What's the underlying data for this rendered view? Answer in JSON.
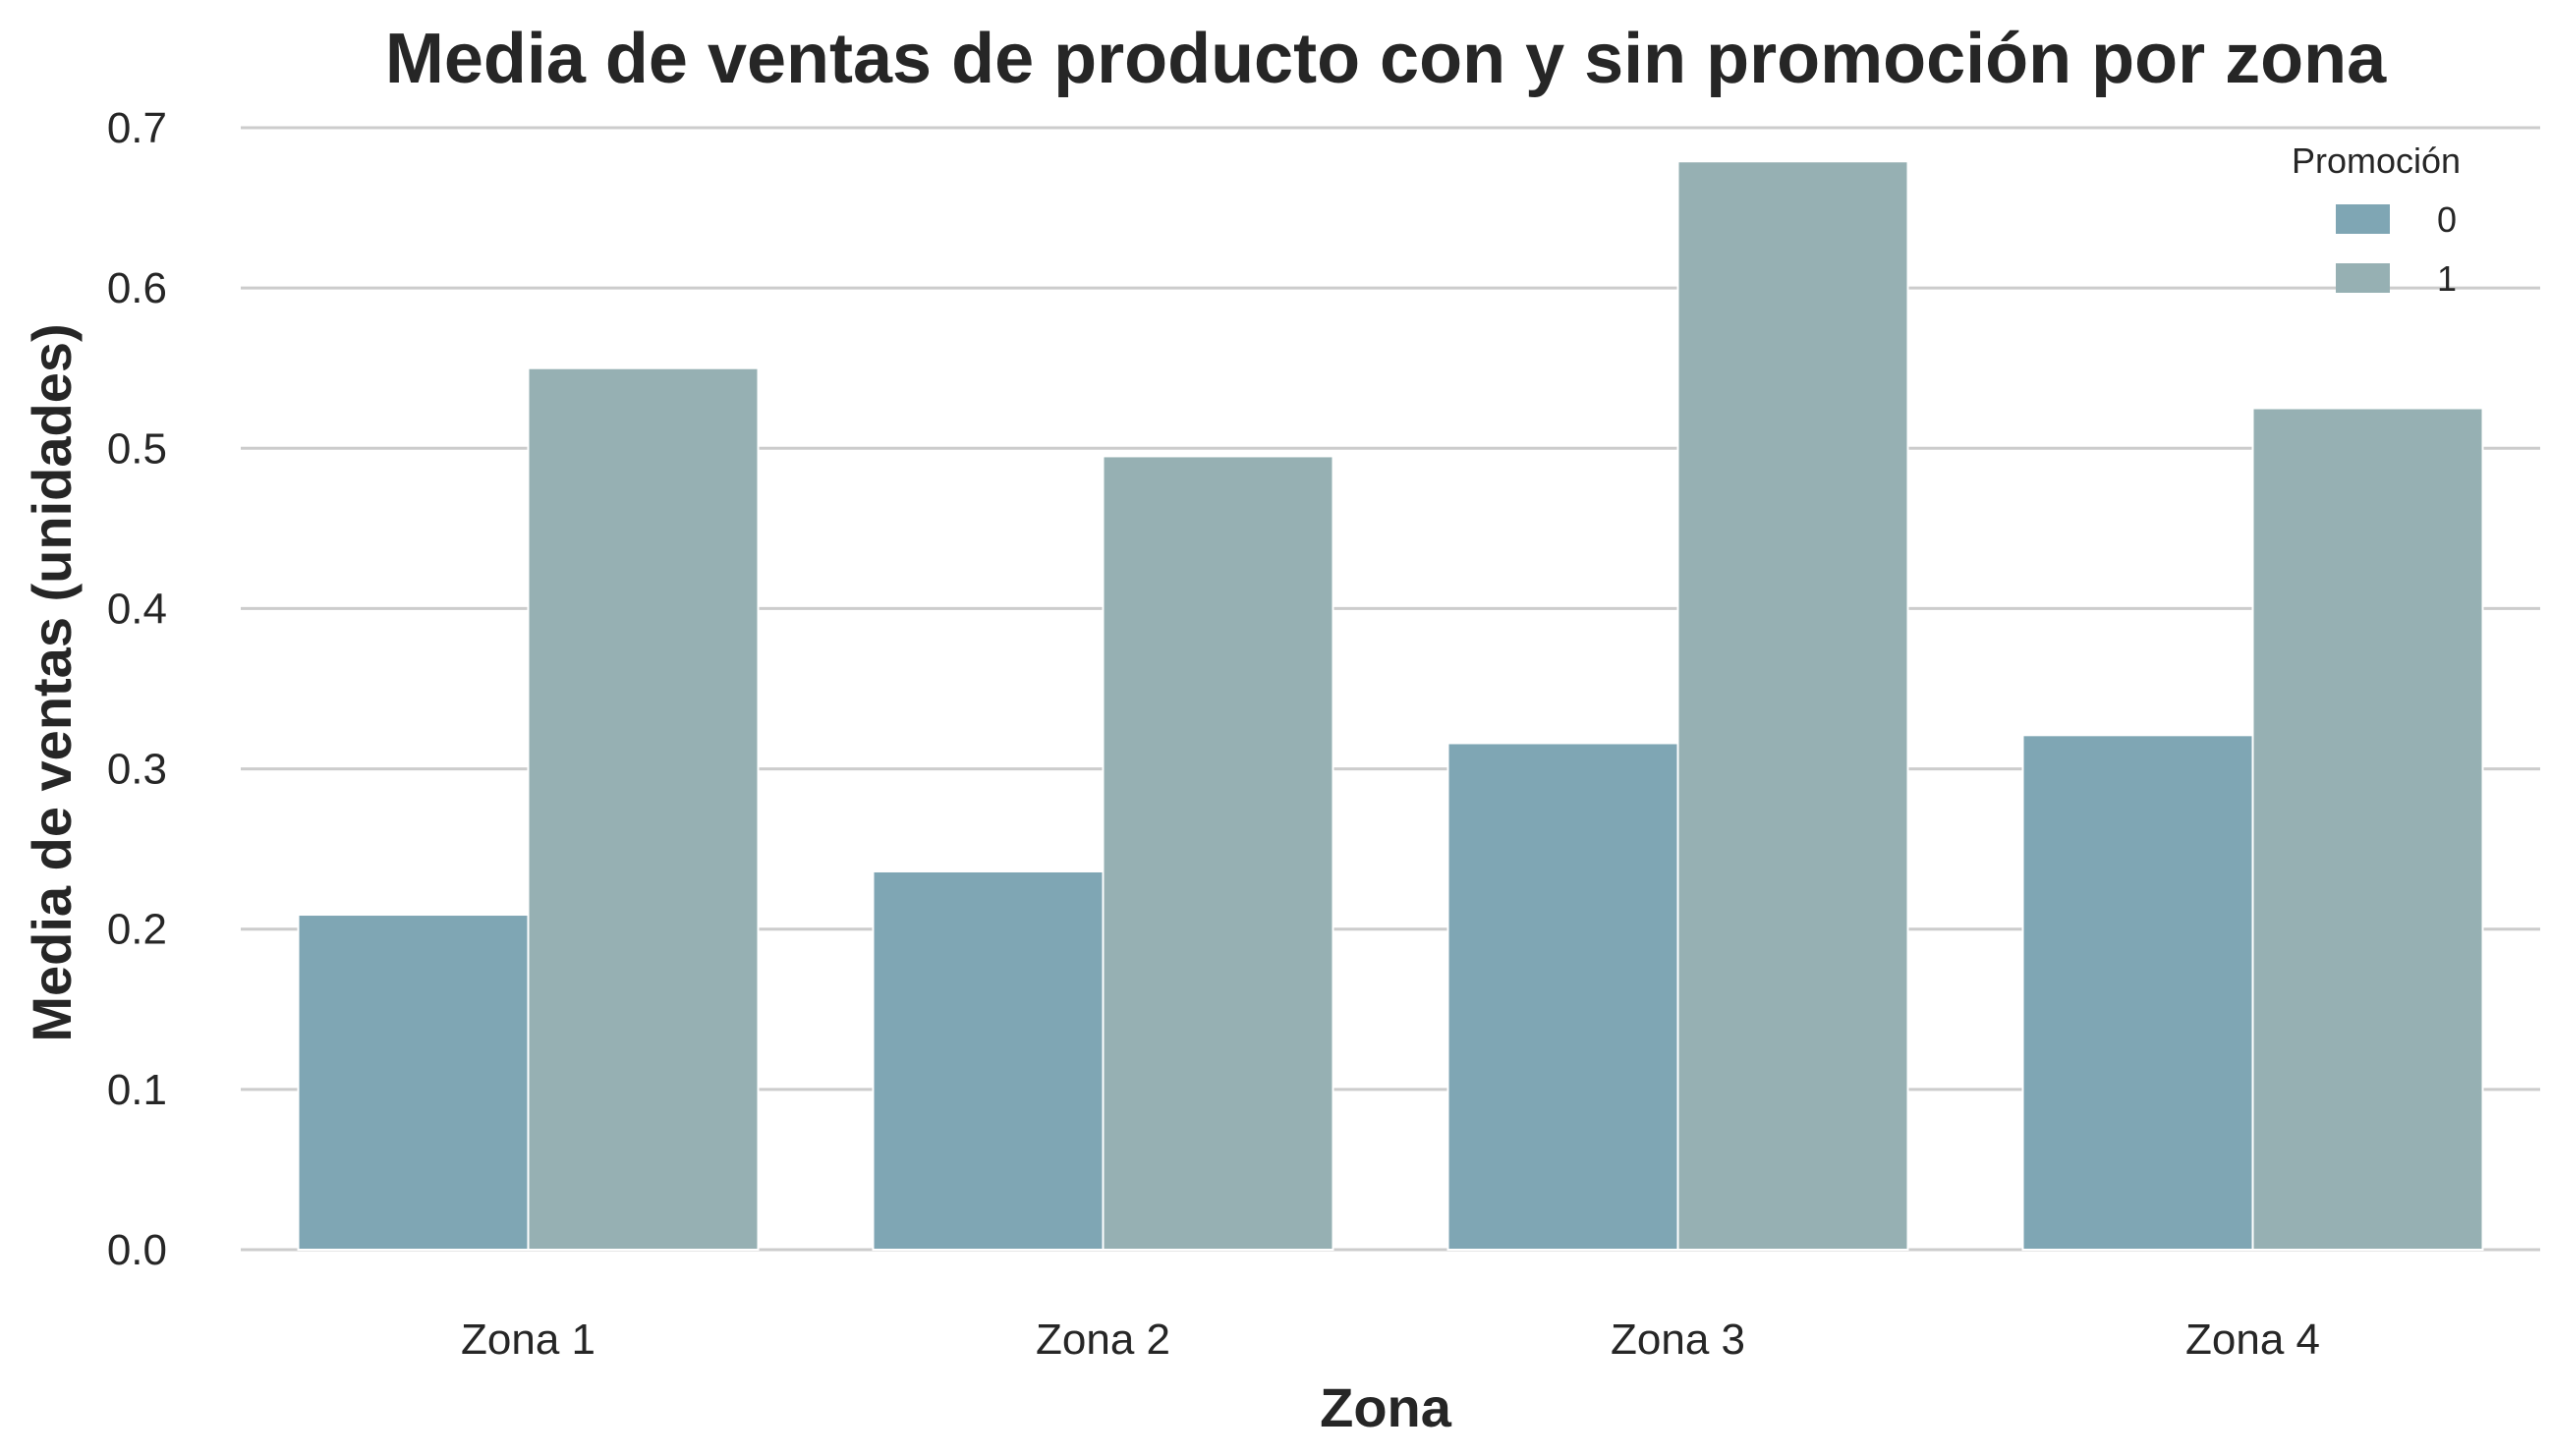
{
  "chart_data": {
    "type": "bar",
    "title": "Media de ventas de producto con y sin promoción por zona",
    "xlabel": "Zona",
    "ylabel": "Media de ventas (unidades)",
    "categories": [
      "Zona 1",
      "Zona 2",
      "Zona 3",
      "Zona 4"
    ],
    "series": [
      {
        "name": "0",
        "values": [
          0.209,
          0.236,
          0.316,
          0.321
        ],
        "color": "#7fa6b4"
      },
      {
        "name": "1",
        "values": [
          0.55,
          0.495,
          0.679,
          0.525
        ],
        "color": "#96b0b3"
      }
    ],
    "ylim": [
      0,
      0.7
    ],
    "yticks": [
      "0.0",
      "0.1",
      "0.2",
      "0.3",
      "0.4",
      "0.5",
      "0.6",
      "0.7"
    ],
    "grid": true,
    "legend": {
      "title": "Promoción",
      "placement": "top-right"
    }
  }
}
